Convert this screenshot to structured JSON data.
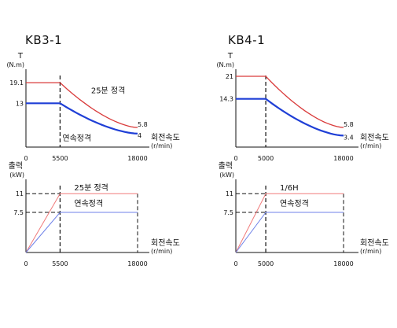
{
  "models": {
    "left": "KB3-1",
    "right": "KB4-1"
  },
  "colors": {
    "rated_25min": "#d93a3a",
    "rated_25min_light": "#f07a7a",
    "continuous": "#1f3fd6",
    "continuous_light": "#6f82e8",
    "axis": "#111111"
  },
  "chart_data": [
    {
      "id": "kb3-torque",
      "type": "line",
      "ylabel": "T",
      "yunit": "(N.m)",
      "xlabel": "회전속도",
      "xunit": "(r/min)",
      "xlim": [
        0,
        18000
      ],
      "ylim": [
        0,
        28
      ],
      "xticks": [
        "0",
        "5500",
        "18000"
      ],
      "yticks": [
        "19.1",
        "13"
      ],
      "base_speed": 5500,
      "series": [
        {
          "name": "25분 정격",
          "style": "rated",
          "x": [
            0,
            5500,
            18000
          ],
          "y": [
            19.1,
            19.1,
            5.8
          ]
        },
        {
          "name": "연속정격",
          "style": "continuous",
          "x": [
            0,
            5500,
            18000
          ],
          "y": [
            13,
            13,
            4
          ]
        }
      ],
      "end_labels": [
        "5.8",
        "4"
      ]
    },
    {
      "id": "kb4-torque",
      "type": "line",
      "ylabel": "T",
      "yunit": "(N.m)",
      "xlabel": "회전속도",
      "xunit": "(r/min)",
      "xlim": [
        0,
        18000
      ],
      "ylim": [
        0,
        28
      ],
      "xticks": [
        "0",
        "5000",
        "18000"
      ],
      "yticks": [
        "21",
        "14.3"
      ],
      "base_speed": 5000,
      "series": [
        {
          "name": "",
          "style": "rated",
          "x": [
            0,
            5000,
            18000
          ],
          "y": [
            21,
            21,
            5.8
          ]
        },
        {
          "name": "",
          "style": "continuous",
          "x": [
            0,
            5000,
            18000
          ],
          "y": [
            14.3,
            14.3,
            3.4
          ]
        }
      ],
      "end_labels": [
        "5.8",
        "3.4"
      ]
    },
    {
      "id": "kb3-power",
      "type": "line",
      "ylabel": "출력",
      "yunit": "(kW)",
      "xlabel": "회전속도",
      "xunit": "(r/min)",
      "xlim": [
        0,
        18000
      ],
      "ylim": [
        0,
        17.5
      ],
      "xticks": [
        "0",
        "5500",
        "18000"
      ],
      "yticks": [
        "11",
        "7.5"
      ],
      "base_speed": 5500,
      "series": [
        {
          "name": "25분 정격",
          "style": "rated_light",
          "x": [
            0,
            5500,
            18000
          ],
          "y": [
            0,
            11,
            11
          ]
        },
        {
          "name": "연속정격",
          "style": "continuous_light",
          "x": [
            0,
            5500,
            18000
          ],
          "y": [
            0,
            7.5,
            7.5
          ]
        }
      ]
    },
    {
      "id": "kb4-power",
      "type": "line",
      "ylabel": "출력",
      "yunit": "(kW)",
      "xlabel": "회전속도",
      "xunit": "(r/min)",
      "xlim": [
        0,
        18000
      ],
      "ylim": [
        0,
        17.5
      ],
      "xticks": [
        "0",
        "5000",
        "18000"
      ],
      "yticks": [
        "11",
        "7.5"
      ],
      "base_speed": 5000,
      "series": [
        {
          "name": "1/6H",
          "style": "rated_light",
          "x": [
            0,
            5000,
            18000
          ],
          "y": [
            0,
            11,
            11
          ]
        },
        {
          "name": "연속정격",
          "style": "continuous_light",
          "x": [
            0,
            5000,
            18000
          ],
          "y": [
            0,
            7.5,
            7.5
          ]
        }
      ]
    }
  ]
}
